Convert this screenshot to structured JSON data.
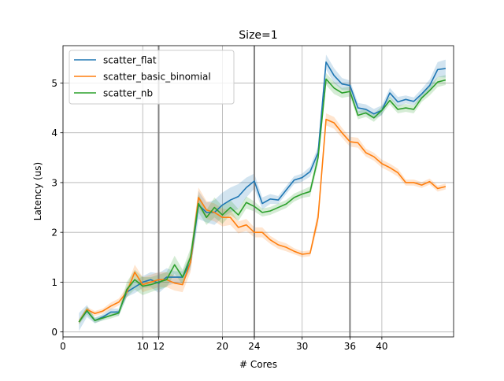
{
  "chart_data": {
    "type": "line",
    "title": "Size=1",
    "xlabel": "# Cores",
    "ylabel": "Latency (us)",
    "xlim": [
      0,
      49
    ],
    "ylim": [
      -0.1,
      5.75
    ],
    "xticks": [
      0,
      10,
      12,
      20,
      24,
      30,
      36,
      40
    ],
    "yticks": [
      0,
      1,
      2,
      3,
      4,
      5
    ],
    "grid": true,
    "legend_position": "upper-left",
    "vertical_markers": [
      12,
      24,
      36
    ],
    "x": [
      2,
      3,
      4,
      5,
      6,
      7,
      8,
      9,
      10,
      11,
      12,
      13,
      14,
      15,
      16,
      17,
      18,
      19,
      20,
      21,
      22,
      23,
      24,
      25,
      26,
      27,
      28,
      29,
      30,
      31,
      32,
      33,
      34,
      35,
      36,
      37,
      38,
      39,
      40,
      41,
      42,
      43,
      44,
      45,
      46,
      47,
      48
    ],
    "series": [
      {
        "name": "scatter_flat",
        "color": "#1f77b4",
        "values": [
          0.2,
          0.42,
          0.23,
          0.3,
          0.4,
          0.4,
          0.8,
          0.9,
          1.0,
          1.05,
          0.98,
          1.1,
          1.1,
          1.1,
          1.4,
          2.55,
          2.4,
          2.4,
          2.55,
          2.65,
          2.72,
          2.9,
          3.03,
          2.58,
          2.67,
          2.65,
          2.85,
          3.05,
          3.1,
          3.22,
          3.6,
          5.42,
          5.15,
          4.98,
          4.95,
          4.5,
          4.47,
          4.38,
          4.45,
          4.8,
          4.62,
          4.67,
          4.63,
          4.78,
          4.95,
          5.27,
          5.29
        ],
        "band": [
          0.18,
          0.12,
          0.06,
          0.06,
          0.07,
          0.07,
          0.1,
          0.12,
          0.12,
          0.15,
          0.2,
          0.18,
          0.12,
          0.12,
          0.15,
          0.28,
          0.2,
          0.25,
          0.25,
          0.25,
          0.25,
          0.2,
          0.15,
          0.12,
          0.1,
          0.08,
          0.08,
          0.08,
          0.08,
          0.1,
          0.12,
          0.15,
          0.15,
          0.12,
          0.1,
          0.1,
          0.1,
          0.1,
          0.1,
          0.1,
          0.1,
          0.08,
          0.08,
          0.1,
          0.12,
          0.15,
          0.18
        ]
      },
      {
        "name": "scatter_basic_binomial",
        "color": "#ff7f0e",
        "values": [
          0.2,
          0.45,
          0.37,
          0.42,
          0.52,
          0.6,
          0.8,
          1.2,
          0.95,
          1.0,
          1.05,
          1.05,
          0.98,
          0.95,
          1.4,
          2.7,
          2.45,
          2.4,
          2.3,
          2.3,
          2.1,
          2.15,
          2.0,
          2.0,
          1.85,
          1.75,
          1.7,
          1.62,
          1.56,
          1.58,
          2.3,
          4.27,
          4.2,
          4.0,
          3.82,
          3.8,
          3.6,
          3.52,
          3.38,
          3.3,
          3.2,
          3.0,
          3.0,
          2.95,
          3.02,
          2.88,
          2.92
        ],
        "band": [
          0.05,
          0.05,
          0.05,
          0.05,
          0.07,
          0.07,
          0.1,
          0.15,
          0.15,
          0.15,
          0.15,
          0.15,
          0.15,
          0.15,
          0.2,
          0.2,
          0.18,
          0.18,
          0.18,
          0.15,
          0.12,
          0.12,
          0.1,
          0.1,
          0.08,
          0.08,
          0.08,
          0.06,
          0.06,
          0.06,
          0.15,
          0.12,
          0.12,
          0.1,
          0.1,
          0.1,
          0.08,
          0.08,
          0.08,
          0.08,
          0.08,
          0.06,
          0.06,
          0.06,
          0.06,
          0.06,
          0.06
        ]
      },
      {
        "name": "scatter_nb",
        "color": "#2ca02c",
        "values": [
          0.2,
          0.43,
          0.23,
          0.28,
          0.33,
          0.38,
          0.85,
          1.05,
          0.92,
          0.95,
          1.0,
          1.05,
          1.35,
          1.1,
          1.5,
          2.58,
          2.3,
          2.5,
          2.35,
          2.5,
          2.35,
          2.6,
          2.52,
          2.4,
          2.43,
          2.5,
          2.57,
          2.7,
          2.77,
          2.82,
          3.5,
          5.08,
          4.9,
          4.8,
          4.83,
          4.35,
          4.4,
          4.3,
          4.45,
          4.65,
          4.47,
          4.5,
          4.47,
          4.7,
          4.85,
          5.02,
          5.06
        ],
        "band": [
          0.05,
          0.08,
          0.05,
          0.05,
          0.06,
          0.06,
          0.15,
          0.2,
          0.18,
          0.15,
          0.15,
          0.15,
          0.18,
          0.15,
          0.18,
          0.18,
          0.15,
          0.2,
          0.18,
          0.15,
          0.12,
          0.12,
          0.1,
          0.08,
          0.08,
          0.08,
          0.08,
          0.08,
          0.08,
          0.1,
          0.12,
          0.12,
          0.12,
          0.1,
          0.1,
          0.08,
          0.08,
          0.08,
          0.08,
          0.08,
          0.08,
          0.08,
          0.08,
          0.08,
          0.1,
          0.1,
          0.1
        ]
      }
    ]
  }
}
